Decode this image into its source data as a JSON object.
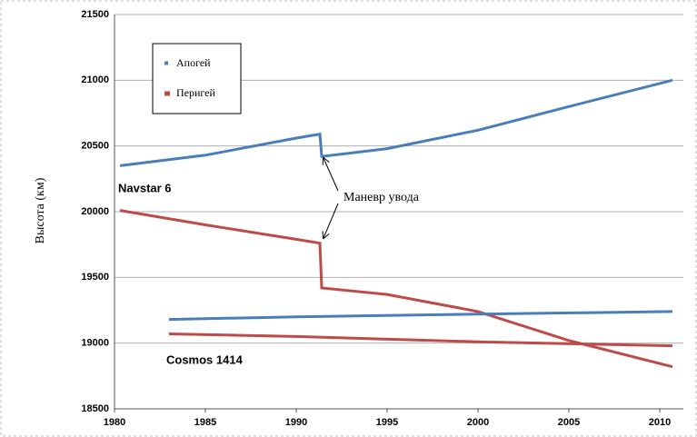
{
  "chart_data": {
    "type": "line",
    "ylabel": "Высота (км)",
    "annotation": "Маневр увода",
    "xlim": [
      1980,
      2011
    ],
    "xticks": [
      1980,
      1985,
      1990,
      1995,
      2000,
      2005,
      2010
    ],
    "ylim": [
      18500,
      21500
    ],
    "yticks": [
      18500,
      19000,
      19500,
      20000,
      20500,
      21000,
      21500
    ],
    "grid": true,
    "legend": [
      {
        "name": "Апогей",
        "color": "#4a7ebb"
      },
      {
        "name": "Перигей",
        "color": "#be4b48"
      }
    ],
    "objects": [
      {
        "name": "Navstar 6",
        "apogee": {
          "x": [
            1980.3,
            1985,
            1990,
            1991.3,
            1991.4,
            1995,
            2000,
            2005,
            2010.7
          ],
          "values": [
            20350,
            20430,
            20560,
            20590,
            20420,
            20480,
            20620,
            20800,
            21000
          ]
        },
        "perigee": {
          "x": [
            1980.3,
            1985,
            1990,
            1991.3,
            1991.4,
            1995,
            2000,
            2005,
            2010.7
          ],
          "values": [
            20010,
            19900,
            19790,
            19760,
            19420,
            19370,
            19240,
            19020,
            18820
          ]
        }
      },
      {
        "name": "Cosmos 1414",
        "apogee": {
          "x": [
            1983,
            1990,
            2000,
            2010.7
          ],
          "values": [
            19180,
            19200,
            19220,
            19240
          ]
        },
        "perigee": {
          "x": [
            1983,
            1990,
            2000,
            2010.7
          ],
          "values": [
            19070,
            19050,
            19010,
            18980
          ]
        }
      }
    ]
  }
}
